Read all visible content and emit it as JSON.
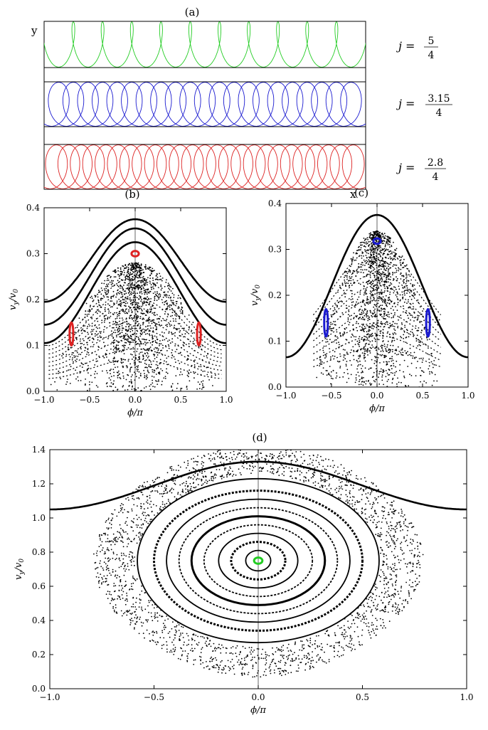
{
  "figure": {
    "panel_labels": [
      "(a)",
      "(b)",
      "(c)",
      "(d)"
    ],
    "panel_a": {
      "y_axis_label": "y",
      "x_axis_label": "x",
      "trajectories": [
        {
          "color": "#22cc22",
          "j_prefix": "j =",
          "j_num": "5",
          "j_den": "4"
        },
        {
          "color": "#1a1ad0",
          "j_prefix": "j =",
          "j_num": "3.15",
          "j_den": "4"
        },
        {
          "color": "#dd2222",
          "j_prefix": "j =",
          "j_num": "2.8",
          "j_den": "4"
        }
      ]
    },
    "poincare_axes": {
      "xlabel": "ϕ/π",
      "ylabel": "v",
      "ylabel_sub": "y",
      "ylabel_den": "/v",
      "ylabel_den_sub": "0"
    }
  },
  "chart_data": [
    {
      "type": "scatter",
      "panel": "(b)",
      "xlabel": "ϕ/π",
      "ylabel": "v_y/v_0",
      "xlim": [
        -1.0,
        1.0
      ],
      "ylim": [
        0.0,
        0.4
      ],
      "x_ticks": [
        "−1.0",
        "−0.5",
        "0.0",
        "0.5",
        "1.0"
      ],
      "y_ticks": [
        "0.0",
        "0.1",
        "0.2",
        "0.3",
        "0.4"
      ],
      "curves": [
        {
          "kind": "open",
          "offset": 0.285,
          "amplitude": 0.09
        },
        {
          "kind": "open",
          "offset": 0.25,
          "amplitude": 0.105
        },
        {
          "kind": "open",
          "offset": 0.215,
          "amplitude": 0.11
        }
      ],
      "chaotic_sea": {
        "top": 0.28,
        "half_width": 0.95
      },
      "islands": [
        {
          "color": "#dd2222",
          "x": 0.0,
          "y": 0.3,
          "rx": 0.04,
          "ry": 0.006
        },
        {
          "color": "#dd2222",
          "x": -0.7,
          "y": 0.125,
          "rx": 0.02,
          "ry": 0.025
        },
        {
          "color": "#dd2222",
          "x": 0.7,
          "y": 0.125,
          "rx": 0.02,
          "ry": 0.025
        }
      ]
    },
    {
      "type": "scatter",
      "panel": "(c)",
      "xlabel": "ϕ/π",
      "ylabel": "v_y/v_0",
      "xlim": [
        -1.0,
        1.0
      ],
      "ylim": [
        0.0,
        0.4
      ],
      "x_ticks": [
        "−1.0",
        "−0.5",
        "0.0",
        "0.5",
        "1.0"
      ],
      "y_ticks": [
        "0.0",
        "0.1",
        "0.2",
        "0.3",
        "0.4"
      ],
      "curves": [
        {
          "kind": "open",
          "offset": 0.22,
          "amplitude": 0.155
        }
      ],
      "chaotic_sea": {
        "top": 0.34,
        "half_width": 0.7
      },
      "islands": [
        {
          "color": "#1a1ad0",
          "x": 0.0,
          "y": 0.318,
          "rx": 0.04,
          "ry": 0.006
        },
        {
          "color": "#1a1ad0",
          "x": -0.56,
          "y": 0.14,
          "rx": 0.02,
          "ry": 0.03
        },
        {
          "color": "#1a1ad0",
          "x": 0.56,
          "y": 0.14,
          "rx": 0.02,
          "ry": 0.03
        }
      ]
    },
    {
      "type": "scatter",
      "panel": "(d)",
      "xlabel": "ϕ/π",
      "ylabel": "v_y/v_0",
      "xlim": [
        -1.0,
        1.0
      ],
      "ylim": [
        0.0,
        1.4
      ],
      "x_ticks": [
        "−1.0",
        "−0.5",
        "0.0",
        "0.5",
        "1.0"
      ],
      "y_ticks": [
        "0.0",
        "0.2",
        "0.4",
        "0.6",
        "0.8",
        "1.0",
        "1.2",
        "1.4"
      ],
      "curves": [
        {
          "kind": "open",
          "offset": 1.19,
          "amplitude": 0.14
        }
      ],
      "center": {
        "x": 0.0,
        "y": 0.75
      },
      "rings": [
        {
          "rx": 0.06,
          "ry": 0.06
        },
        {
          "rx": 0.13,
          "ry": 0.11
        },
        {
          "rx": 0.19,
          "ry": 0.16
        },
        {
          "rx": 0.26,
          "ry": 0.21
        },
        {
          "rx": 0.32,
          "ry": 0.26
        },
        {
          "rx": 0.38,
          "ry": 0.31
        },
        {
          "rx": 0.44,
          "ry": 0.36
        },
        {
          "rx": 0.5,
          "ry": 0.41
        },
        {
          "rx": 0.58,
          "ry": 0.48
        }
      ],
      "chaotic_sea": {
        "rx": 0.72,
        "ry": 0.62
      },
      "islands": [
        {
          "color": "#22cc22",
          "x": 0.0,
          "y": 0.75,
          "rx": 0.02,
          "ry": 0.018
        }
      ]
    }
  ]
}
